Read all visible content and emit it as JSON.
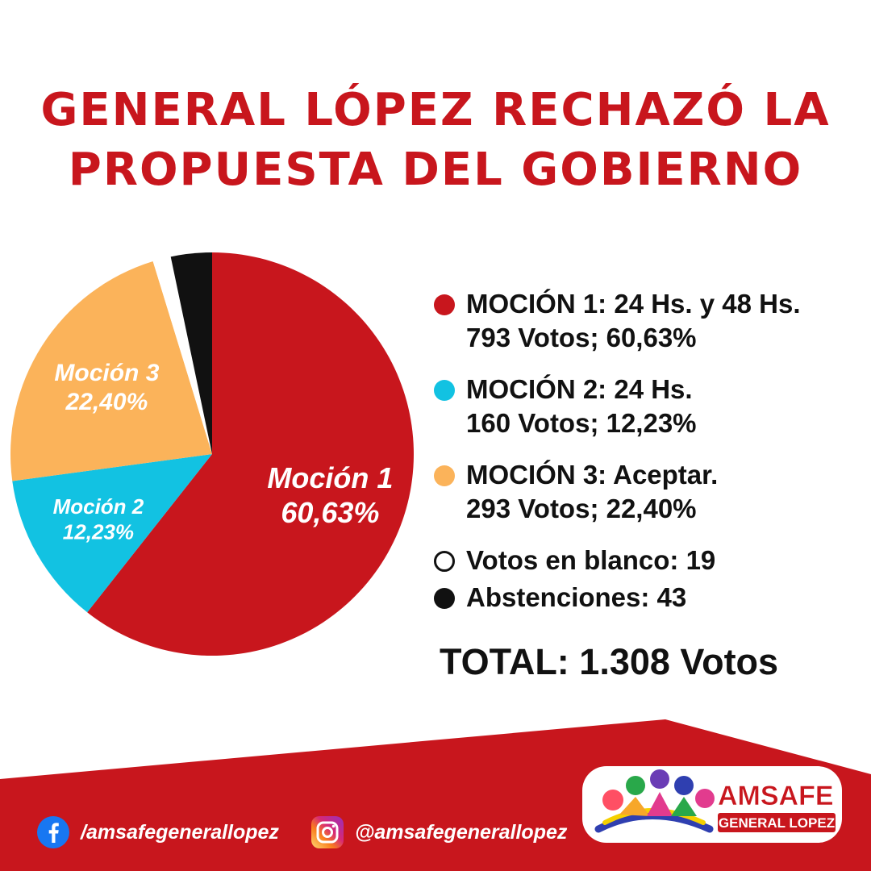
{
  "title": {
    "line1": "GENERAL LÓPEZ RECHAZÓ LA",
    "line2": "PROPUESTA DEL GOBIERNO"
  },
  "chart_data": {
    "type": "pie",
    "slices": [
      {
        "name": "Moción 1",
        "value": 60.63,
        "display": "60,63%",
        "color": "#c8161d"
      },
      {
        "name": "Moción 2",
        "value": 12.23,
        "display": "12,23%",
        "color": "#12c2e2"
      },
      {
        "name": "Moción 3",
        "value": 22.4,
        "display": "22,40%",
        "color": "#fbb35a"
      },
      {
        "name": "",
        "value": 1.45,
        "color": "#ffffff"
      },
      {
        "name": "",
        "value": 3.29,
        "color": "#111111"
      }
    ],
    "legend_placement": "right"
  },
  "legend": [
    {
      "line1": "MOCIÓN 1: 24 Hs. y 48 Hs.",
      "line2": "793 Votos; 60,63%",
      "color": "#c8161d"
    },
    {
      "line1": "MOCIÓN 2: 24 Hs.",
      "line2": "160 Votos; 12,23%",
      "color": "#12c2e2"
    },
    {
      "line1": "MOCIÓN 3: Aceptar.",
      "line2": "293 Votos; 22,40%",
      "color": "#fbb35a"
    },
    {
      "line1": "Votos en blanco: 19",
      "color": "#ffffff"
    },
    {
      "line1": "Abstenciones: 43",
      "color": "#111111"
    }
  ],
  "total": "TOTAL: 1.308 Votos",
  "footer": {
    "facebook": "/amsafegenerallopez",
    "instagram": "@amsafegenerallopez",
    "facebook_icon": "facebook-icon",
    "instagram_icon": "instagram-icon",
    "brand_color": "#c8161d"
  },
  "logo": {
    "name": "AMSAFE",
    "subtitle": "GENERAL LOPEZ"
  }
}
